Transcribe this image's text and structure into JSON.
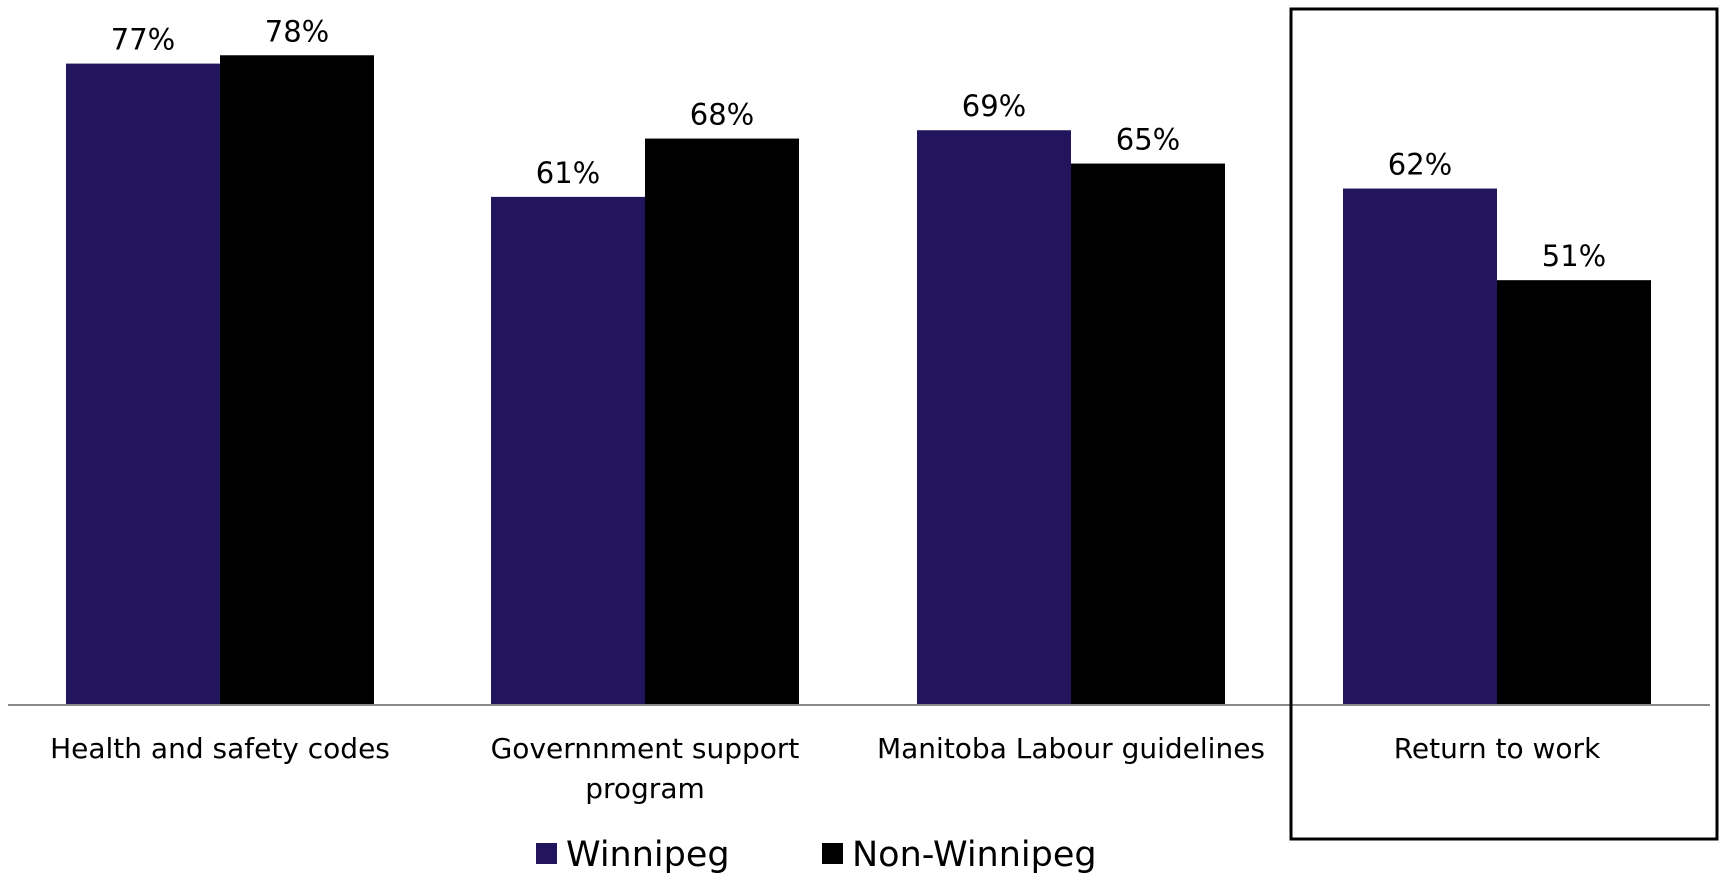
{
  "chart_data": {
    "type": "bar",
    "categories": [
      [
        "Health and safety codes"
      ],
      [
        "Governnment support",
        "program"
      ],
      [
        "Manitoba Labour guidelines"
      ],
      [
        "Return to work"
      ]
    ],
    "series": [
      {
        "name": "Winnipeg",
        "values": [
          77,
          61,
          69,
          62
        ],
        "labels": [
          "77%",
          "61%",
          "69%",
          "62%"
        ],
        "color": "#23145e"
      },
      {
        "name": "Non-Winnipeg",
        "values": [
          78,
          68,
          65,
          51
        ],
        "labels": [
          "78%",
          "68%",
          "65%",
          "51%"
        ],
        "color": "#000000"
      }
    ],
    "ylim": [
      0,
      100
    ],
    "highlighted_category": "Return to work",
    "grid": false,
    "legend_position": "bottom"
  }
}
